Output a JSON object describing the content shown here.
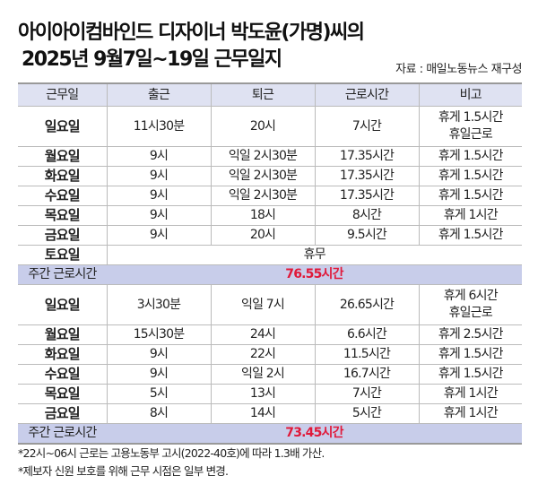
{
  "title": {
    "line1": "아이아이컴바인드 디자이너 박도윤(가명)씨의",
    "line2": "2025년 9월7일~19일 근무일지"
  },
  "source": "자료 : 매일노동뉴스 재구성",
  "columns": [
    "근무일",
    "출근",
    "퇴근",
    "근로시간",
    "비고"
  ],
  "week1": {
    "rows": [
      [
        "일요일",
        "11시30분",
        "20시",
        "7시간",
        "휴게 1.5시간\n휴일근로"
      ],
      [
        "월요일",
        "9시",
        "익일 2시30분",
        "17.35시간",
        "휴게 1.5시간"
      ],
      [
        "화요일",
        "9시",
        "익일 2시30분",
        "17.35시간",
        "휴게 1.5시간"
      ],
      [
        "수요일",
        "9시",
        "익일 2시30분",
        "17.35시간",
        "휴게 1.5시간"
      ],
      [
        "목요일",
        "9시",
        "18시",
        "8시간",
        "휴게 1시간"
      ],
      [
        "금요일",
        "9시",
        "20시",
        "9.5시간",
        "휴게 1.5시간"
      ]
    ],
    "off_day": "토요일",
    "off_label": "휴무",
    "total_label": "주간 근로시간",
    "total": "76.55시간"
  },
  "week2": {
    "rows": [
      [
        "일요일",
        "3시30분",
        "익일 7시",
        "26.65시간",
        "휴게 6시간\n휴일근로"
      ],
      [
        "월요일",
        "15시30분",
        "24시",
        "6.6시간",
        "휴게 2.5시간"
      ],
      [
        "화요일",
        "9시",
        "22시",
        "11.5시간",
        "휴게 1.5시간"
      ],
      [
        "수요일",
        "9시",
        "익일 2시",
        "16.7시간",
        "휴게 1.5시간"
      ],
      [
        "목요일",
        "5시",
        "13시",
        "7시간",
        "휴게 1시간"
      ],
      [
        "금요일",
        "8시",
        "14시",
        "5시간",
        "휴게 1시간"
      ]
    ],
    "total_label": "주간 근로시간",
    "total": "73.45시간"
  },
  "notes": [
    "*22시~06시 근로는 고용노동부 고시(2022-40호)에 따라 1.3배 가산.",
    "*제보자 신원 보호를 위해 근무 시점은 일부 변경."
  ],
  "colors": {
    "header_bg": "#dfe2f2",
    "total_bg": "#c8cdea",
    "total_text": "#e0193a"
  }
}
